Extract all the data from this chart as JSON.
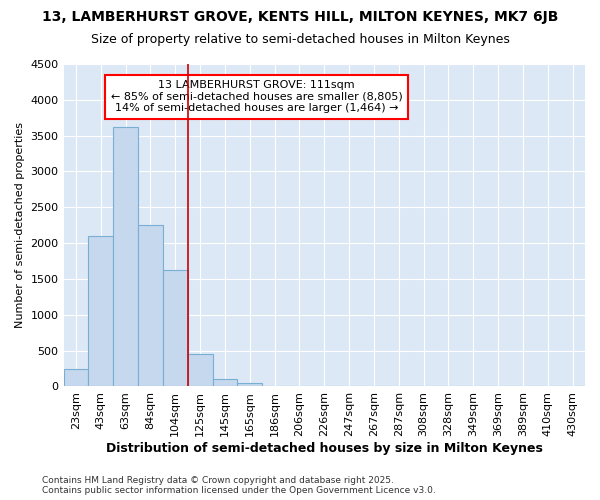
{
  "title1": "13, LAMBERHURST GROVE, KENTS HILL, MILTON KEYNES, MK7 6JB",
  "title2": "Size of property relative to semi-detached houses in Milton Keynes",
  "xlabel": "Distribution of semi-detached houses by size in Milton Keynes",
  "ylabel": "Number of semi-detached properties",
  "footnote": "Contains HM Land Registry data © Crown copyright and database right 2025.\nContains public sector information licensed under the Open Government Licence v3.0.",
  "bins": [
    "23sqm",
    "43sqm",
    "63sqm",
    "84sqm",
    "104sqm",
    "125sqm",
    "145sqm",
    "165sqm",
    "186sqm",
    "206sqm",
    "226sqm",
    "247sqm",
    "267sqm",
    "287sqm",
    "308sqm",
    "328sqm",
    "349sqm",
    "369sqm",
    "389sqm",
    "410sqm",
    "430sqm"
  ],
  "values": [
    250,
    2100,
    3620,
    2250,
    1620,
    450,
    100,
    50,
    5,
    0,
    0,
    0,
    0,
    0,
    0,
    0,
    0,
    0,
    0,
    0,
    0
  ],
  "bar_color": "#c5d8ee",
  "bar_edge_color": "#7aafd4",
  "vline_x": 4.5,
  "vline_color": "#cc0000",
  "ylim": [
    0,
    4500
  ],
  "yticks": [
    0,
    500,
    1000,
    1500,
    2000,
    2500,
    3000,
    3500,
    4000,
    4500
  ],
  "annotation_text": "13 LAMBERHURST GROVE: 111sqm\n← 85% of semi-detached houses are smaller (8,805)\n14% of semi-detached houses are larger (1,464) →",
  "fig_bg_color": "#ffffff",
  "plot_bg_color": "#dce8f5",
  "grid_color": "#ffffff",
  "title1_fontsize": 10,
  "title2_fontsize": 9,
  "xlabel_fontsize": 9,
  "ylabel_fontsize": 8,
  "tick_fontsize": 8,
  "footnote_fontsize": 6.5
}
